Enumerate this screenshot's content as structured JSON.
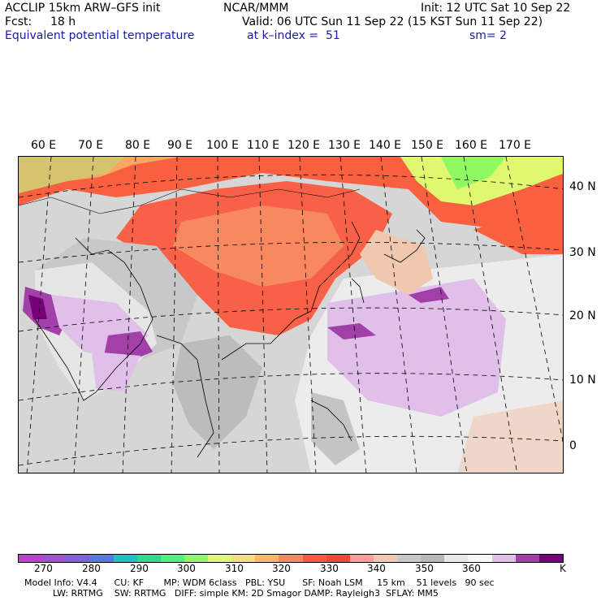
{
  "header": {
    "model_title": "ACCLIP 15km ARW–GFS init",
    "center": "NCAR/MMM",
    "init": "Init: 12 UTC Sat 10 Sep 22",
    "fcst_label": "Fcst:",
    "fcst_value": "18 h",
    "valid": "Valid: 06 UTC Sun 11 Sep 22 (15 KST Sun 11 Sep 22)",
    "field_name": "Equivalent potential temperature",
    "level": "at k–index =  51",
    "smoothing": "sm= 2"
  },
  "map": {
    "lon_labels": [
      "60 E",
      "70 E",
      "80 E",
      "90 E",
      "100 E",
      "110 E",
      "120 E",
      "130 E",
      "140 E",
      "150 E",
      "160 E",
      "170 E"
    ],
    "lat_labels": [
      "40 N",
      "30 N",
      "20 N",
      "10 N",
      "0"
    ]
  },
  "colorbar": {
    "colors": [
      "#c040c8",
      "#a050d8",
      "#8060e0",
      "#5878e8",
      "#20c0c0",
      "#30d890",
      "#50f080",
      "#90f860",
      "#e0f870",
      "#f8e078",
      "#f8b868",
      "#f88860",
      "#f85848",
      "#f04838",
      "#f8a098",
      "#f0c8b0",
      "#c8c8c8",
      "#b8b8b8",
      "#e8e8e8",
      "#f8f8f8",
      "#e0c0e8",
      "#a040a8",
      "#780078"
    ],
    "labels": [
      "270",
      "280",
      "290",
      "300",
      "310",
      "320",
      "330",
      "340",
      "350",
      "360"
    ],
    "unit": "K"
  },
  "footer": {
    "line1": "Model Info: V4.4      CU: KF       MP: WDM 6class   PBL: YSU      SF: Noah LSM     15 km    51 levels   90 sec",
    "line2": "          LW: RRTMG    SW: RRTMG   DIFF: simple KM: 2D Smagor DAMP: Rayleigh3  SFLAY: MM5"
  }
}
